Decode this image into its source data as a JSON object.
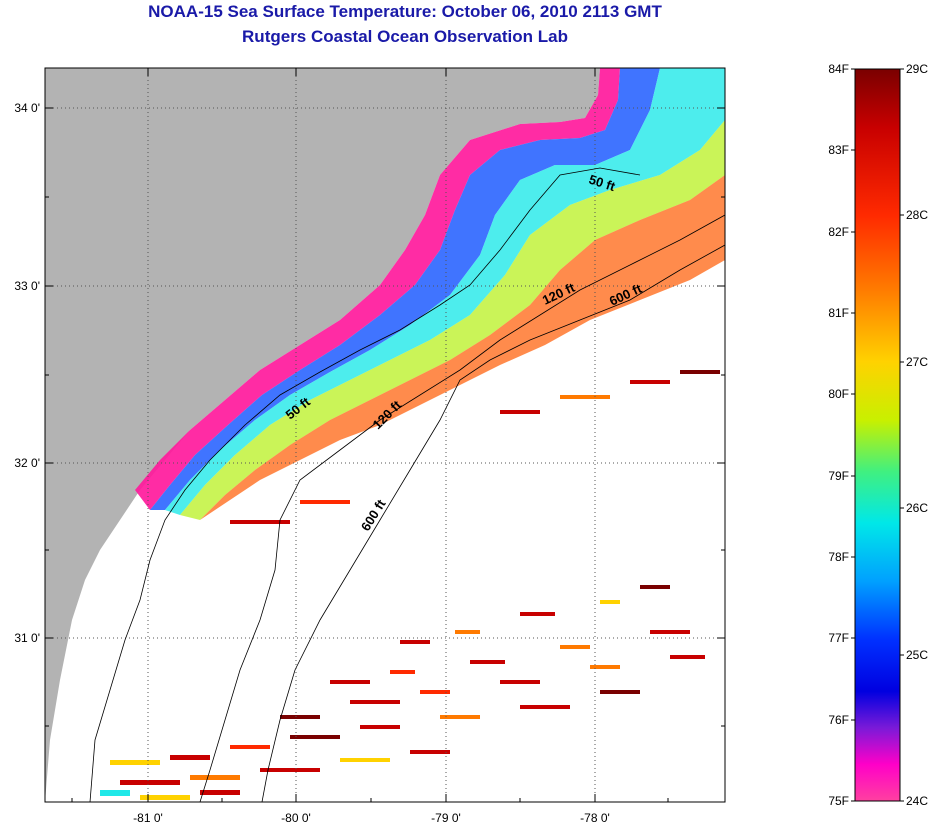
{
  "title": "NOAA-15 Sea Surface Temperature:  October 06, 2010 2113 GMT",
  "subtitle": "Rutgers Coastal Ocean Observation Lab",
  "map": {
    "lat_ticks": [
      "34 0'",
      "33 0'",
      "32 0'",
      "31 0'"
    ],
    "lon_ticks": [
      "-81 0'",
      "-80 0'",
      "-79 0'",
      "-78 0'"
    ],
    "depth_labels": [
      "50 ft",
      "50 ft",
      "120 ft",
      "120 ft",
      "600 ft",
      "600 ft"
    ],
    "colors": {
      "land": "#b3b3b3",
      "no_data": "#ffffff",
      "grid": "#555555"
    }
  },
  "colorbar": {
    "fahrenheit_labels": [
      "84F",
      "83F",
      "82F",
      "81F",
      "80F",
      "79F",
      "78F",
      "77F",
      "76F",
      "75F"
    ],
    "celsius_labels": [
      "29C",
      "28C",
      "27C",
      "26C",
      "25C",
      "24C"
    ],
    "gradient_colors": [
      "#7a0000",
      "#c80000",
      "#ff2a00",
      "#ff7a00",
      "#ffd200",
      "#c8f000",
      "#40f080",
      "#00e8e8",
      "#00a0ff",
      "#0030ff",
      "#0000e0",
      "#7a1ad8",
      "#ff00c8",
      "#ff40a0"
    ]
  }
}
